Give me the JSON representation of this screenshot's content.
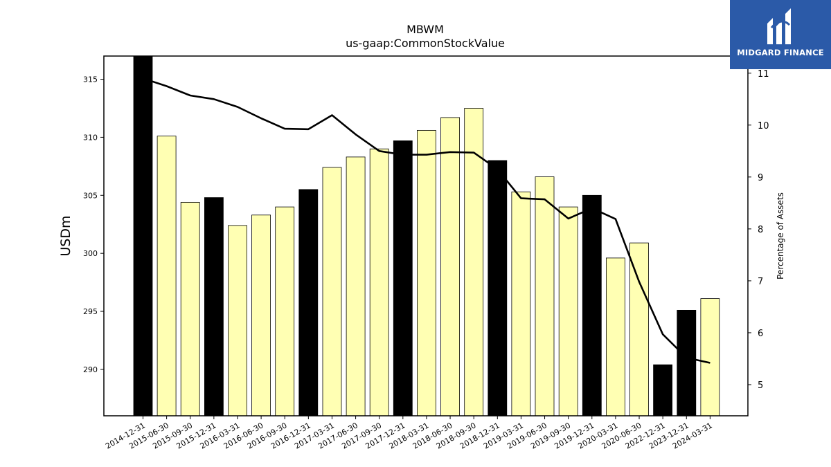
{
  "chart_data": {
    "type": "bar",
    "title": "MBWM",
    "subtitle": "us-gaap:CommonStockValue",
    "ylabel": "USDm",
    "y2label": "Percentage of Assets",
    "ylim": [
      286,
      317
    ],
    "y2lim": [
      4.4,
      11.33
    ],
    "yticks": [
      290,
      295,
      300,
      305,
      310,
      315
    ],
    "y2ticks": [
      5,
      6,
      7,
      8,
      9,
      10,
      11
    ],
    "categories": [
      "2014-12-31",
      "2015-06-30",
      "2015-09-30",
      "2015-12-31",
      "2016-03-31",
      "2016-06-30",
      "2016-09-30",
      "2016-12-31",
      "2017-03-31",
      "2017-06-30",
      "2017-09-30",
      "2017-12-31",
      "2018-03-31",
      "2018-06-30",
      "2018-09-30",
      "2018-12-31",
      "2019-03-31",
      "2019-06-30",
      "2019-09-30",
      "2019-12-31",
      "2020-03-31",
      "2020-06-30",
      "2022-12-31",
      "2023-12-31",
      "2024-03-31"
    ],
    "series": [
      {
        "kind": "bar",
        "values": [
          317.0,
          310.1,
          304.4,
          304.8,
          302.4,
          303.3,
          304.0,
          305.5,
          307.4,
          308.3,
          309.0,
          309.7,
          310.6,
          311.7,
          312.5,
          308.0,
          305.3,
          306.6,
          304.0,
          305.0,
          299.6,
          300.9,
          290.4,
          295.1,
          296.1
        ],
        "highlight": [
          true,
          false,
          false,
          true,
          false,
          false,
          false,
          true,
          false,
          false,
          false,
          true,
          false,
          false,
          false,
          true,
          false,
          false,
          false,
          true,
          false,
          false,
          true,
          true,
          false
        ]
      },
      {
        "kind": "line",
        "axis": "right",
        "values": [
          10.9,
          10.75,
          10.57,
          10.5,
          10.35,
          10.13,
          9.93,
          9.92,
          10.19,
          9.82,
          9.5,
          9.43,
          9.43,
          9.48,
          9.47,
          9.15,
          8.59,
          8.57,
          8.2,
          8.4,
          8.19,
          6.98,
          5.97,
          5.52,
          5.42
        ]
      }
    ],
    "colors": {
      "highlight_bar": "#000000",
      "bar": "#ffffb3",
      "bar_edge": "#000000",
      "line": "#000000"
    },
    "grid": false
  },
  "brand": {
    "name": "MIDGARD FINANCE",
    "logo_icon": "midgard-logo-icon",
    "bg": "#2b5aa8"
  }
}
